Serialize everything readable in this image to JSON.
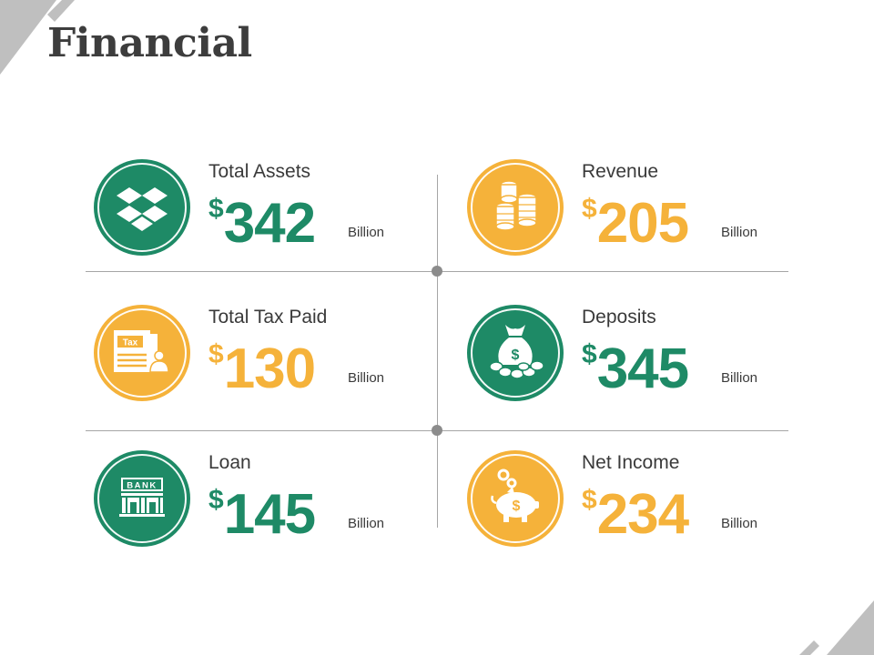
{
  "title": "Financial",
  "colors": {
    "green": "#1e8a66",
    "orange": "#f5b23a",
    "gray": "#bfbfbf"
  },
  "cards": [
    {
      "label": "Total Assets",
      "currency": "$",
      "value": "342",
      "unit": "Billion",
      "color": "green",
      "icon": "dropbox-icon"
    },
    {
      "label": "Revenue",
      "currency": "$",
      "value": "205",
      "unit": "Billion",
      "color": "orange",
      "icon": "coins-icon"
    },
    {
      "label": "Total Tax Paid",
      "currency": "$",
      "value": "130",
      "unit": "Billion",
      "color": "orange",
      "icon": "tax-document-icon"
    },
    {
      "label": "Deposits",
      "currency": "$",
      "value": "345",
      "unit": "Billion",
      "color": "green",
      "icon": "money-bag-icon"
    },
    {
      "label": "Loan",
      "currency": "$",
      "value": "145",
      "unit": "Billion",
      "color": "green",
      "icon": "bank-icon"
    },
    {
      "label": "Net Income",
      "currency": "$",
      "value": "234",
      "unit": "Billion",
      "color": "orange",
      "icon": "piggy-bank-icon"
    }
  ],
  "icons": {
    "bank_text": "BANK",
    "tax_text": "Tax"
  }
}
